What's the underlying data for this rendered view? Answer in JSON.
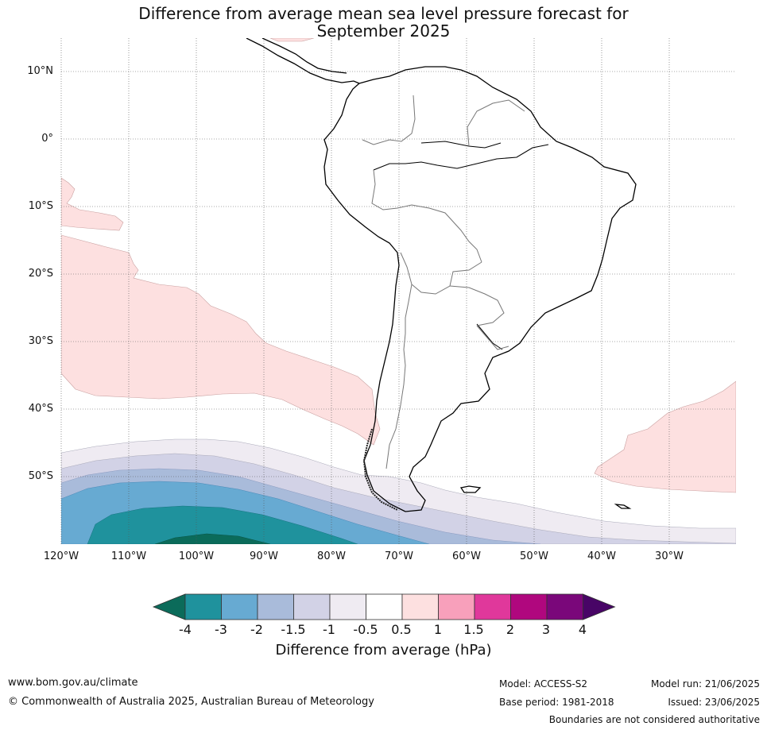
{
  "title": {
    "line1": "Difference from average mean sea level pressure forecast for",
    "line2": "September 2025"
  },
  "map": {
    "lat_labels": [
      "10°N",
      "0°",
      "10°S",
      "20°S",
      "30°S",
      "40°S",
      "50°S"
    ],
    "lon_labels": [
      "120°W",
      "110°W",
      "100°W",
      "90°W",
      "80°W",
      "70°W",
      "60°W",
      "50°W",
      "40°W",
      "30°W"
    ]
  },
  "colorbar": {
    "colors": [
      "#0b6b5a",
      "#1f929d",
      "#67aad2",
      "#a9bbda",
      "#d2d2e6",
      "#efebf2",
      "#ffffff",
      "#fde0e0",
      "#f8a0bb",
      "#e0389b",
      "#b0077e",
      "#7a077a",
      "#480566"
    ],
    "labels": [
      "-4",
      "-3",
      "-2",
      "-1.5",
      "-1",
      "-0.5",
      "0.5",
      "1",
      "1.5",
      "2",
      "3",
      "4"
    ],
    "title": "Difference from average (hPa)"
  },
  "footer": {
    "website": "www.bom.gov.au/climate",
    "copyright": "© Commonwealth of Australia 2025, Australian Bureau of Meteorology",
    "model": "Model: ACCESS-S2",
    "base_period": "Base period: 1981-2018",
    "model_run": "Model run: 21/06/2025",
    "issued": "Issued: 23/06/2025",
    "disclaimer": "Boundaries are not considered authoritative"
  }
}
